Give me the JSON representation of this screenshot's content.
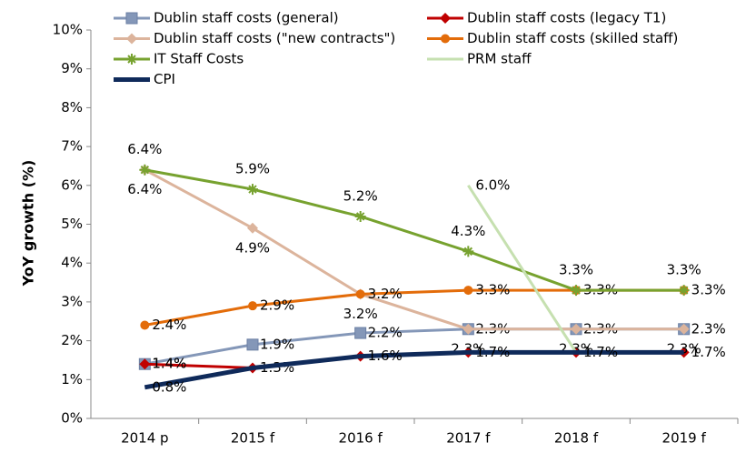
{
  "chart_data": {
    "type": "line",
    "y_label": "YoY growth (%)",
    "categories": [
      "2014 p",
      "2015 f",
      "2016 f",
      "2017 f",
      "2018 f",
      "2019 f"
    ],
    "ylim": [
      0,
      10
    ],
    "yticks": [
      {
        "value": 0,
        "label": "0%"
      },
      {
        "value": 1,
        "label": "1%"
      },
      {
        "value": 2,
        "label": "2%"
      },
      {
        "value": 3,
        "label": "3%"
      },
      {
        "value": 4,
        "label": "4%"
      },
      {
        "value": 5,
        "label": "5%"
      },
      {
        "value": 6,
        "label": "6%"
      },
      {
        "value": 7,
        "label": "7%"
      },
      {
        "value": 8,
        "label": "8%"
      },
      {
        "value": 9,
        "label": "9%"
      },
      {
        "value": 10,
        "label": "10%"
      }
    ],
    "grid": false,
    "series": [
      {
        "name": "Dublin staff costs (general)",
        "color": "#8497b8",
        "marker": "square",
        "width": 3,
        "values": [
          1.4,
          1.9,
          2.2,
          2.3,
          2.3,
          2.3
        ],
        "value_labels": [
          "1.4%",
          "1.9%",
          "2.2%",
          "2.3%",
          "2.3%",
          "2.3%"
        ]
      },
      {
        "name": "Dublin staff costs (legacy T1)",
        "color": "#c00000",
        "marker": "diamond",
        "width": 3,
        "values": [
          1.4,
          1.3,
          1.6,
          1.7,
          1.7,
          1.7
        ],
        "value_labels": [
          "1.4%",
          "1.3%",
          null,
          null,
          null,
          null
        ]
      },
      {
        "name": "Dublin staff costs (\"new contracts\")",
        "color": "#dcb49c",
        "marker": "diamond",
        "width": 3,
        "values": [
          6.4,
          4.9,
          3.2,
          2.3,
          2.3,
          2.3
        ],
        "value_labels": [
          "6.4%",
          "4.9%",
          "3.2%",
          "2.3%",
          "2.3%",
          "2.3%"
        ]
      },
      {
        "name": "Dublin staff costs (skilled staff)",
        "color": "#e36c0a",
        "marker": "circle",
        "width": 3,
        "values": [
          2.4,
          2.9,
          3.2,
          3.3,
          3.3,
          3.3
        ],
        "value_labels": [
          "2.4%",
          "2.9%",
          "3.2%",
          "3.3%",
          "3.3%",
          "3.3%"
        ]
      },
      {
        "name": "IT Staff Costs",
        "color": "#77a22f",
        "marker": "star",
        "width": 3,
        "values": [
          6.4,
          5.9,
          5.2,
          4.3,
          3.3,
          3.3
        ],
        "value_labels": [
          "6.4%",
          "5.9%",
          "5.2%",
          "4.3%",
          "3.3%",
          "3.3%"
        ]
      },
      {
        "name": "PRM staff",
        "color": "#c6e0b0",
        "marker": "none",
        "width": 3,
        "values": [
          null,
          null,
          null,
          6.0,
          1.7,
          null
        ],
        "value_labels": [
          null,
          null,
          null,
          "6.0%",
          null,
          null
        ]
      },
      {
        "name": "CPI",
        "color": "#0f2a5a",
        "marker": "none",
        "width": 5,
        "values": [
          0.8,
          1.3,
          1.6,
          1.7,
          1.7,
          1.7
        ],
        "value_labels": [
          "0.8%",
          null,
          "1.6%",
          "1.7%",
          "1.7%",
          "1.7%"
        ]
      }
    ]
  }
}
